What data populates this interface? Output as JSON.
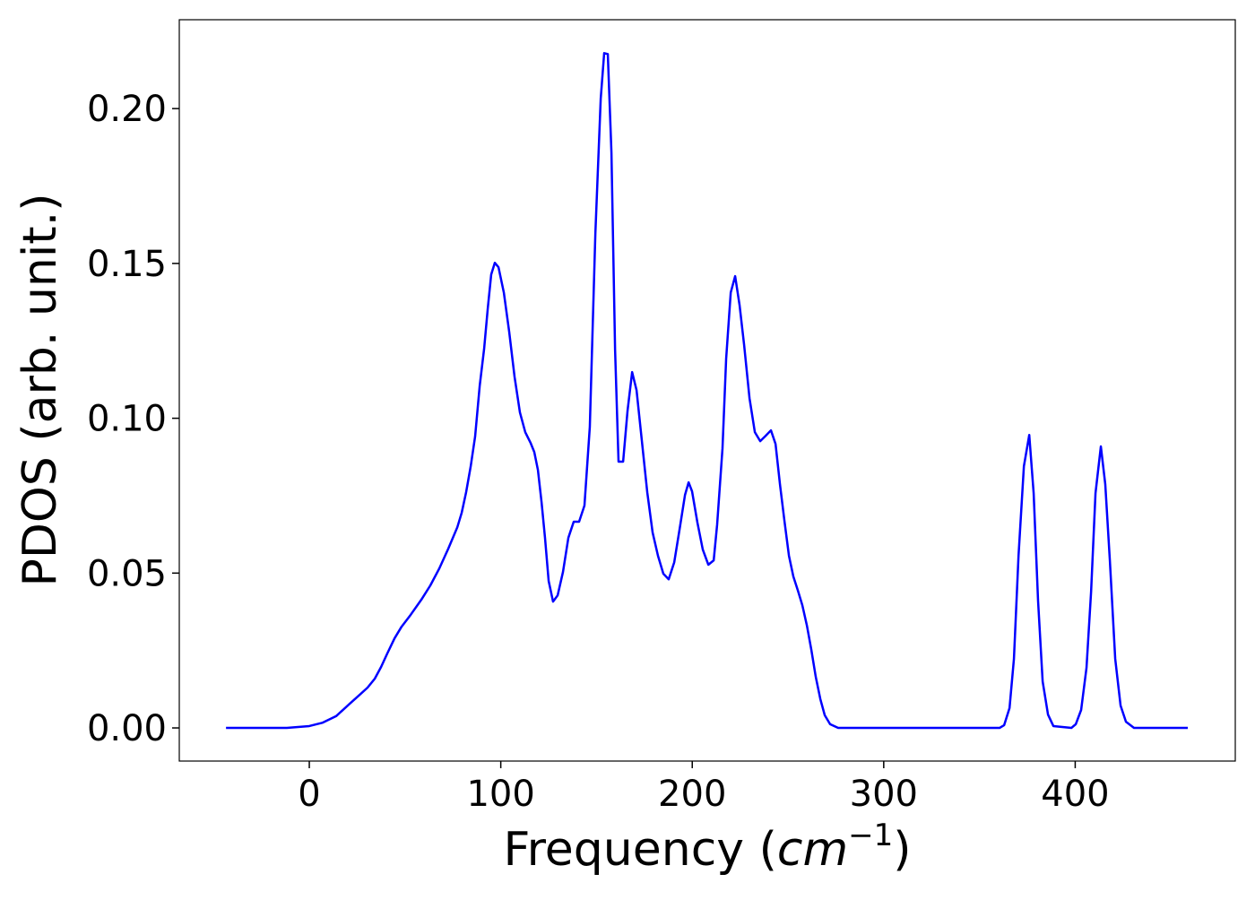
{
  "chart_data": {
    "type": "line",
    "x_label": [
      "Frequency (",
      "cm",
      "−1",
      ")"
    ],
    "y_label": "PDOS (arb. unit.)",
    "color": "#0000ff",
    "x": [
      -43.5,
      -11.7,
      0,
      7.0,
      14.0,
      21.1,
      25.8,
      30.4,
      34.2,
      37.5,
      40.7,
      44.5,
      48.2,
      52.9,
      58.5,
      63.2,
      67.9,
      72.6,
      77.3,
      79.6,
      81.9,
      84.3,
      86.6,
      89.0,
      91.3,
      93.2,
      95.0,
      96.9,
      98.8,
      101.6,
      104.4,
      107.2,
      110.0,
      112.8,
      115.6,
      117.5,
      119.4,
      121.3,
      123.1,
      125.0,
      127.3,
      129.7,
      132.5,
      135.3,
      138.1,
      140.9,
      143.7,
      146.5,
      149.4,
      152.2,
      154.0,
      155.9,
      157.8,
      159.7,
      161.5,
      163.9,
      166.2,
      168.6,
      170.9,
      173.7,
      176.5,
      179.3,
      182.1,
      184.9,
      187.7,
      190.6,
      193.4,
      196.2,
      198.1,
      199.9,
      202.7,
      205.5,
      208.4,
      211.2,
      213.0,
      215.8,
      217.7,
      220.1,
      222.4,
      224.7,
      227.1,
      229.9,
      232.7,
      235.5,
      238.3,
      241.1,
      243.5,
      245.8,
      248.1,
      250.5,
      252.8,
      255.2,
      257.5,
      259.9,
      262.2,
      264.5,
      266.9,
      269.2,
      272.0,
      276.2,
      360.5,
      362.9,
      365.7,
      368.0,
      370.4,
      373.2,
      376.0,
      378.3,
      380.6,
      383.0,
      385.8,
      388.6,
      398.0,
      400.3,
      403.1,
      405.9,
      408.3,
      410.6,
      413.4,
      415.7,
      418.1,
      420.9,
      423.7,
      426.5,
      430.7,
      458.8
    ],
    "values": [
      0,
      0,
      0.0006,
      0.0017,
      0.0038,
      0.0078,
      0.0104,
      0.013,
      0.0159,
      0.0197,
      0.024,
      0.0289,
      0.0327,
      0.0365,
      0.0414,
      0.046,
      0.0515,
      0.0579,
      0.0648,
      0.0695,
      0.0761,
      0.0845,
      0.0941,
      0.1105,
      0.1224,
      0.1354,
      0.1464,
      0.1502,
      0.1488,
      0.1406,
      0.1279,
      0.1134,
      0.1019,
      0.0955,
      0.092,
      0.0891,
      0.0833,
      0.0729,
      0.0614,
      0.0475,
      0.0408,
      0.0428,
      0.0504,
      0.0614,
      0.0666,
      0.0666,
      0.0718,
      0.0972,
      0.1597,
      0.2032,
      0.2179,
      0.2176,
      0.1858,
      0.1221,
      0.086,
      0.086,
      0.1024,
      0.1149,
      0.1091,
      0.0926,
      0.0761,
      0.0631,
      0.0556,
      0.0498,
      0.048,
      0.0535,
      0.0642,
      0.0752,
      0.0793,
      0.0764,
      0.0663,
      0.0576,
      0.0527,
      0.0541,
      0.0657,
      0.0903,
      0.1192,
      0.1406,
      0.1459,
      0.1366,
      0.1236,
      0.1065,
      0.0955,
      0.0926,
      0.0943,
      0.0961,
      0.0917,
      0.0787,
      0.0671,
      0.0556,
      0.0489,
      0.0443,
      0.0396,
      0.033,
      0.0252,
      0.0165,
      0.0093,
      0.0041,
      0.0012,
      0,
      0,
      0.0009,
      0.0064,
      0.0223,
      0.0556,
      0.0845,
      0.0946,
      0.0758,
      0.0411,
      0.015,
      0.0043,
      0.0006,
      0,
      0.0012,
      0.0058,
      0.0194,
      0.044,
      0.0758,
      0.0909,
      0.0787,
      0.0541,
      0.0223,
      0.0072,
      0.002,
      0,
      0
    ],
    "xlim": [
      -67.9,
      483.6
    ],
    "ylim": [
      -0.0107,
      0.2287
    ],
    "xticks": [
      0,
      100,
      200,
      300,
      400
    ],
    "yticks": [
      {
        "value": 0,
        "label": "0.00"
      },
      0.05,
      {
        "value": 0.1,
        "label": "0.10"
      },
      0.15,
      {
        "value": 0.2,
        "label": "0.20"
      }
    ]
  }
}
